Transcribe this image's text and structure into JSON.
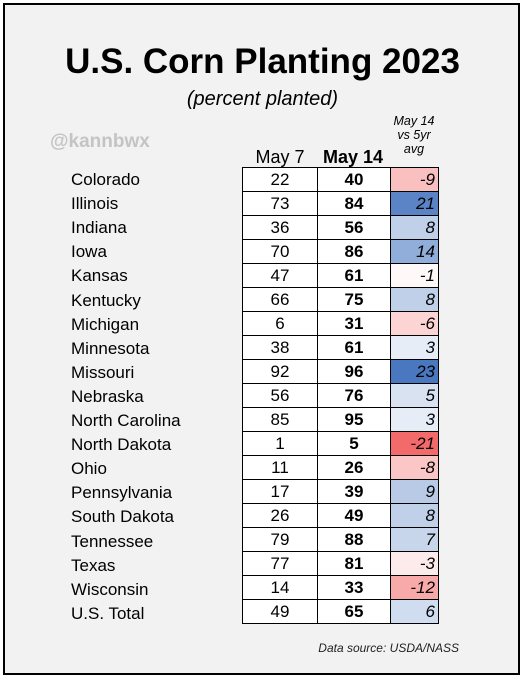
{
  "chart_data": {
    "type": "table",
    "title": "U.S. Corn Planting 2023",
    "subtitle": "(percent planted)",
    "watermark": "@kannbwx",
    "columns": [
      "May 7",
      "May 14",
      "May 14 vs 5yr avg"
    ],
    "vs_header_lines": [
      "May 14",
      "vs 5yr",
      "avg"
    ],
    "rows": [
      {
        "state": "Colorado",
        "may7": 22,
        "may14": 40,
        "vs5yr": -9
      },
      {
        "state": "Illinois",
        "may7": 73,
        "may14": 84,
        "vs5yr": 21
      },
      {
        "state": "Indiana",
        "may7": 36,
        "may14": 56,
        "vs5yr": 8
      },
      {
        "state": "Iowa",
        "may7": 70,
        "may14": 86,
        "vs5yr": 14
      },
      {
        "state": "Kansas",
        "may7": 47,
        "may14": 61,
        "vs5yr": -1
      },
      {
        "state": "Kentucky",
        "may7": 66,
        "may14": 75,
        "vs5yr": 8
      },
      {
        "state": "Michigan",
        "may7": 6,
        "may14": 31,
        "vs5yr": -6
      },
      {
        "state": "Minnesota",
        "may7": 38,
        "may14": 61,
        "vs5yr": 3
      },
      {
        "state": "Missouri",
        "may7": 92,
        "may14": 96,
        "vs5yr": 23
      },
      {
        "state": "Nebraska",
        "may7": 56,
        "may14": 76,
        "vs5yr": 5
      },
      {
        "state": "North Carolina",
        "may7": 85,
        "may14": 95,
        "vs5yr": 3
      },
      {
        "state": "North Dakota",
        "may7": 1,
        "may14": 5,
        "vs5yr": -21
      },
      {
        "state": "Ohio",
        "may7": 11,
        "may14": 26,
        "vs5yr": -8
      },
      {
        "state": "Pennsylvania",
        "may7": 17,
        "may14": 39,
        "vs5yr": 9
      },
      {
        "state": "South Dakota",
        "may7": 26,
        "may14": 49,
        "vs5yr": 8
      },
      {
        "state": "Tennessee",
        "may7": 79,
        "may14": 88,
        "vs5yr": 7
      },
      {
        "state": "Texas",
        "may7": 77,
        "may14": 81,
        "vs5yr": -3
      },
      {
        "state": "Wisconsin",
        "may7": 14,
        "may14": 33,
        "vs5yr": -12
      },
      {
        "state": "U.S. Total",
        "may7": 49,
        "may14": 65,
        "vs5yr": 6
      }
    ],
    "color_scale": {
      "positive": "#4a78c0",
      "negative": "#f25c5c",
      "neutral": "#ffffff"
    },
    "source": "Data source: USDA/NASS"
  }
}
